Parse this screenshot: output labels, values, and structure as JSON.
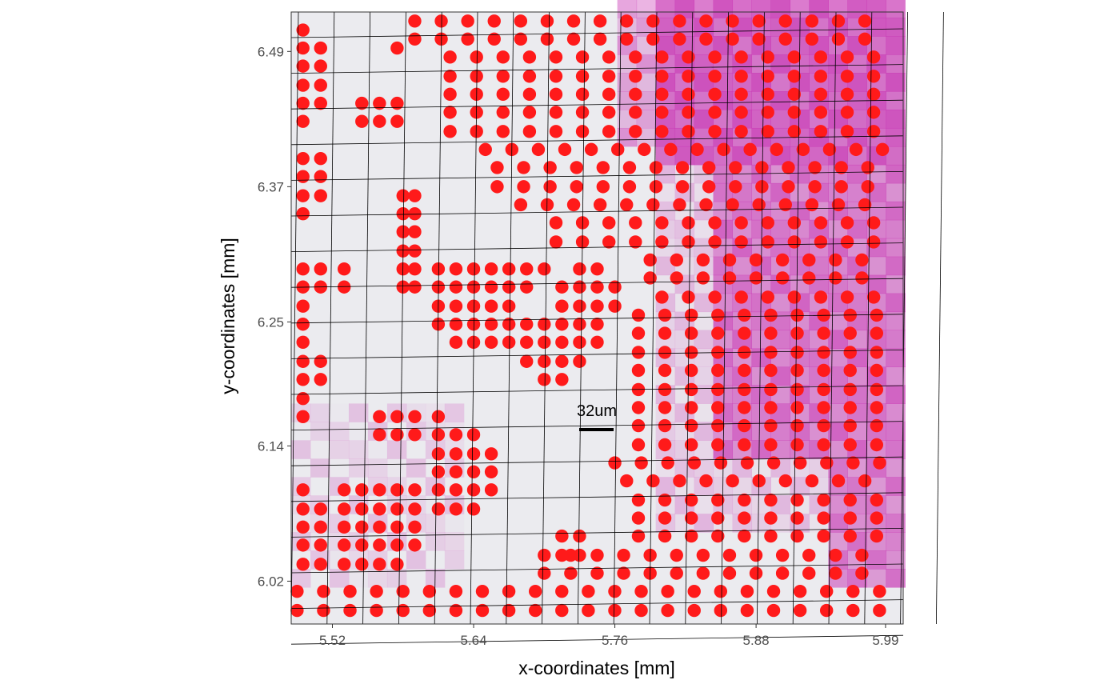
{
  "chart_data": {
    "type": "scatter",
    "title": "",
    "xlabel": "x-coordinates [mm]",
    "ylabel": "y-coordinates [mm]",
    "x_ticks": [
      "5.52",
      "5.64",
      "5.76",
      "5.88",
      "5.99"
    ],
    "y_ticks": [
      "6.49",
      "6.37",
      "6.25",
      "6.14",
      "6.02"
    ],
    "x_tick_values": [
      5.52,
      5.64,
      5.76,
      5.88,
      5.99
    ],
    "y_tick_values": [
      6.49,
      6.37,
      6.25,
      6.14,
      6.02
    ],
    "xlim": [
      5.485,
      6.005
    ],
    "ylim": [
      5.982,
      6.525
    ],
    "scale_bar_label": "32um",
    "spot_pitch_mm": 0.0163,
    "point_color": "#ff1a1a",
    "grid_color": "#000000",
    "background_color": "#ebebef",
    "tissue_high_color": "#c837b4",
    "series": [
      {
        "rows": [
          {
            "y": 6.517,
            "x_from": 5.59,
            "x_to": 5.99
          },
          {
            "y": 6.501,
            "x_from": 5.59,
            "x_to": 5.99
          },
          {
            "y": 6.485,
            "x_from": 5.62,
            "x_to": 5.99
          },
          {
            "y": 6.468,
            "x_from": 5.62,
            "x_to": 5.99
          },
          {
            "y": 6.452,
            "x_from": 5.62,
            "x_to": 5.99
          },
          {
            "y": 6.436,
            "x_from": 5.62,
            "x_to": 5.99
          },
          {
            "y": 6.419,
            "x_from": 5.62,
            "x_to": 5.99
          },
          {
            "y": 6.403,
            "x_from": 5.65,
            "x_to": 5.99
          },
          {
            "y": 6.387,
            "x_from": 5.66,
            "x_to": 5.99
          },
          {
            "y": 6.37,
            "x_from": 5.66,
            "x_to": 5.99
          },
          {
            "y": 6.354,
            "x_from": 5.68,
            "x_to": 5.99
          },
          {
            "y": 6.338,
            "x_from": 5.71,
            "x_to": 5.99
          },
          {
            "y": 6.321,
            "x_from": 5.71,
            "x_to": 5.99
          },
          {
            "y": 6.305,
            "x_from": 5.79,
            "x_to": 5.99
          },
          {
            "y": 6.289,
            "x_from": 5.79,
            "x_to": 5.99
          },
          {
            "y": 6.272,
            "x_from": 5.8,
            "x_to": 5.99
          },
          {
            "y": 6.256,
            "x_from": 5.78,
            "x_to": 5.99
          },
          {
            "y": 6.24,
            "x_from": 5.78,
            "x_to": 5.99
          },
          {
            "y": 6.223,
            "x_from": 5.78,
            "x_to": 5.99
          },
          {
            "y": 6.207,
            "x_from": 5.78,
            "x_to": 5.99
          },
          {
            "y": 6.19,
            "x_from": 5.78,
            "x_to": 5.99
          },
          {
            "y": 6.174,
            "x_from": 5.78,
            "x_to": 5.99
          },
          {
            "y": 6.158,
            "x_from": 5.78,
            "x_to": 5.99
          },
          {
            "y": 6.141,
            "x_from": 5.78,
            "x_to": 5.99
          },
          {
            "y": 6.125,
            "x_from": 5.76,
            "x_to": 5.99
          },
          {
            "y": 6.109,
            "x_from": 5.77,
            "x_to": 5.99
          },
          {
            "y": 6.092,
            "x_from": 5.78,
            "x_to": 5.99
          },
          {
            "y": 6.076,
            "x_from": 5.78,
            "x_to": 5.99
          },
          {
            "y": 6.06,
            "x_from": 5.78,
            "x_to": 5.99
          },
          {
            "y": 6.043,
            "x_from": 5.7,
            "x_to": 5.99
          },
          {
            "y": 6.027,
            "x_from": 5.7,
            "x_to": 5.99
          },
          {
            "y": 6.011,
            "x_from": 5.49,
            "x_to": 5.99
          },
          {
            "y": 5.994,
            "x_from": 5.49,
            "x_to": 5.99
          }
        ]
      }
    ],
    "extra_points": [
      [
        5.495,
        6.509
      ],
      [
        5.495,
        6.493
      ],
      [
        5.495,
        6.477
      ],
      [
        5.495,
        6.46
      ],
      [
        5.495,
        6.444
      ],
      [
        5.495,
        6.428
      ],
      [
        5.495,
        6.395
      ],
      [
        5.495,
        6.379
      ],
      [
        5.495,
        6.362
      ],
      [
        5.495,
        6.346
      ],
      [
        5.495,
        6.297
      ],
      [
        5.495,
        6.281
      ],
      [
        5.495,
        6.264
      ],
      [
        5.495,
        6.248
      ],
      [
        5.495,
        6.232
      ],
      [
        5.495,
        6.215
      ],
      [
        5.495,
        6.199
      ],
      [
        5.495,
        6.182
      ],
      [
        5.495,
        6.166
      ],
      [
        5.495,
        6.101
      ],
      [
        5.495,
        6.084
      ],
      [
        5.495,
        6.068
      ],
      [
        5.495,
        6.052
      ],
      [
        5.495,
        6.035
      ],
      [
        5.51,
        6.493
      ],
      [
        5.51,
        6.477
      ],
      [
        5.51,
        6.46
      ],
      [
        5.51,
        6.444
      ],
      [
        5.51,
        6.395
      ],
      [
        5.51,
        6.379
      ],
      [
        5.51,
        6.362
      ],
      [
        5.51,
        6.297
      ],
      [
        5.51,
        6.281
      ],
      [
        5.51,
        6.215
      ],
      [
        5.51,
        6.199
      ],
      [
        5.51,
        6.084
      ],
      [
        5.51,
        6.068
      ],
      [
        5.51,
        6.052
      ],
      [
        5.51,
        6.035
      ],
      [
        5.53,
        6.297
      ],
      [
        5.53,
        6.281
      ],
      [
        5.53,
        6.084
      ],
      [
        5.53,
        6.068
      ],
      [
        5.53,
        6.052
      ],
      [
        5.53,
        6.035
      ],
      [
        5.53,
        6.101
      ],
      [
        5.545,
        6.444
      ],
      [
        5.545,
        6.428
      ],
      [
        5.545,
        6.084
      ],
      [
        5.545,
        6.068
      ],
      [
        5.545,
        6.052
      ],
      [
        5.545,
        6.035
      ],
      [
        5.545,
        6.101
      ],
      [
        5.56,
        6.444
      ],
      [
        5.56,
        6.428
      ],
      [
        5.56,
        6.166
      ],
      [
        5.56,
        6.15
      ],
      [
        5.56,
        6.101
      ],
      [
        5.56,
        6.084
      ],
      [
        5.56,
        6.068
      ],
      [
        5.56,
        6.052
      ],
      [
        5.56,
        6.035
      ],
      [
        5.575,
        6.444
      ],
      [
        5.575,
        6.428
      ],
      [
        5.575,
        6.166
      ],
      [
        5.575,
        6.15
      ],
      [
        5.575,
        6.101
      ],
      [
        5.575,
        6.084
      ],
      [
        5.575,
        6.068
      ],
      [
        5.575,
        6.052
      ],
      [
        5.575,
        6.035
      ],
      [
        5.575,
        6.493
      ],
      [
        5.58,
        6.362
      ],
      [
        5.58,
        6.346
      ],
      [
        5.58,
        6.33
      ],
      [
        5.58,
        6.313
      ],
      [
        5.58,
        6.297
      ],
      [
        5.58,
        6.281
      ],
      [
        5.59,
        6.362
      ],
      [
        5.59,
        6.346
      ],
      [
        5.59,
        6.33
      ],
      [
        5.59,
        6.313
      ],
      [
        5.59,
        6.297
      ],
      [
        5.59,
        6.281
      ],
      [
        5.59,
        6.166
      ],
      [
        5.59,
        6.15
      ],
      [
        5.59,
        6.101
      ],
      [
        5.59,
        6.084
      ],
      [
        5.59,
        6.068
      ],
      [
        5.59,
        6.052
      ],
      [
        5.61,
        6.297
      ],
      [
        5.61,
        6.281
      ],
      [
        5.61,
        6.264
      ],
      [
        5.61,
        6.248
      ],
      [
        5.61,
        6.166
      ],
      [
        5.61,
        6.15
      ],
      [
        5.61,
        6.133
      ],
      [
        5.61,
        6.117
      ],
      [
        5.61,
        6.101
      ],
      [
        5.61,
        6.084
      ],
      [
        5.625,
        6.297
      ],
      [
        5.625,
        6.281
      ],
      [
        5.625,
        6.264
      ],
      [
        5.625,
        6.248
      ],
      [
        5.625,
        6.232
      ],
      [
        5.625,
        6.15
      ],
      [
        5.625,
        6.133
      ],
      [
        5.625,
        6.117
      ],
      [
        5.625,
        6.101
      ],
      [
        5.625,
        6.084
      ],
      [
        5.64,
        6.297
      ],
      [
        5.64,
        6.281
      ],
      [
        5.64,
        6.264
      ],
      [
        5.64,
        6.248
      ],
      [
        5.64,
        6.232
      ],
      [
        5.64,
        6.15
      ],
      [
        5.64,
        6.133
      ],
      [
        5.64,
        6.117
      ],
      [
        5.64,
        6.101
      ],
      [
        5.64,
        6.084
      ],
      [
        5.655,
        6.297
      ],
      [
        5.655,
        6.281
      ],
      [
        5.655,
        6.264
      ],
      [
        5.655,
        6.248
      ],
      [
        5.655,
        6.232
      ],
      [
        5.655,
        6.133
      ],
      [
        5.655,
        6.117
      ],
      [
        5.655,
        6.101
      ],
      [
        5.67,
        6.297
      ],
      [
        5.67,
        6.281
      ],
      [
        5.67,
        6.264
      ],
      [
        5.67,
        6.248
      ],
      [
        5.67,
        6.232
      ],
      [
        5.685,
        6.297
      ],
      [
        5.685,
        6.281
      ],
      [
        5.685,
        6.248
      ],
      [
        5.685,
        6.232
      ],
      [
        5.685,
        6.215
      ],
      [
        5.7,
        6.297
      ],
      [
        5.7,
        6.248
      ],
      [
        5.7,
        6.232
      ],
      [
        5.7,
        6.215
      ],
      [
        5.7,
        6.199
      ],
      [
        5.715,
        6.281
      ],
      [
        5.715,
        6.264
      ],
      [
        5.715,
        6.248
      ],
      [
        5.715,
        6.232
      ],
      [
        5.715,
        6.215
      ],
      [
        5.715,
        6.199
      ],
      [
        5.73,
        6.297
      ],
      [
        5.73,
        6.281
      ],
      [
        5.73,
        6.264
      ],
      [
        5.73,
        6.248
      ],
      [
        5.73,
        6.232
      ],
      [
        5.73,
        6.215
      ],
      [
        5.745,
        6.297
      ],
      [
        5.745,
        6.281
      ],
      [
        5.745,
        6.264
      ],
      [
        5.745,
        6.248
      ],
      [
        5.745,
        6.232
      ],
      [
        5.76,
        6.281
      ],
      [
        5.76,
        6.264
      ],
      [
        5.715,
        6.06
      ],
      [
        5.715,
        6.043
      ],
      [
        5.73,
        6.06
      ],
      [
        5.73,
        6.043
      ]
    ]
  }
}
